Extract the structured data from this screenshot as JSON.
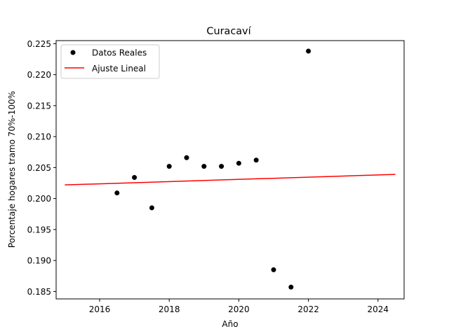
{
  "chart_data": {
    "type": "scatter",
    "title": "Curacaví",
    "xlabel": "Año",
    "ylabel": "Porcentaje hogares tramo 70%-100%",
    "xlim": [
      2014.75,
      2024.75
    ],
    "ylim": [
      0.1838,
      0.2255
    ],
    "x_ticks": [
      2016,
      2018,
      2020,
      2022,
      2024
    ],
    "y_ticks": [
      0.185,
      0.19,
      0.195,
      0.2,
      0.205,
      0.21,
      0.215,
      0.22,
      0.225
    ],
    "grid": false,
    "legend_position": "top-left",
    "series": [
      {
        "name": "Datos Reales",
        "kind": "scatter",
        "color": "#000000",
        "points": [
          {
            "x": 2016.5,
            "y": 0.2009
          },
          {
            "x": 2017.0,
            "y": 0.2034
          },
          {
            "x": 2017.5,
            "y": 0.1985
          },
          {
            "x": 2018.0,
            "y": 0.2052
          },
          {
            "x": 2018.5,
            "y": 0.2066
          },
          {
            "x": 2019.0,
            "y": 0.2052
          },
          {
            "x": 2019.5,
            "y": 0.2052
          },
          {
            "x": 2020.0,
            "y": 0.2057
          },
          {
            "x": 2020.5,
            "y": 0.2062
          },
          {
            "x": 2021.0,
            "y": 0.1885
          },
          {
            "x": 2021.5,
            "y": 0.1857
          },
          {
            "x": 2022.0,
            "y": 0.2238
          }
        ]
      },
      {
        "name": "Ajuste Lineal",
        "kind": "line",
        "color": "#ff0000",
        "points": [
          {
            "x": 2015.0,
            "y": 0.2022
          },
          {
            "x": 2024.5,
            "y": 0.2039
          }
        ]
      }
    ]
  }
}
